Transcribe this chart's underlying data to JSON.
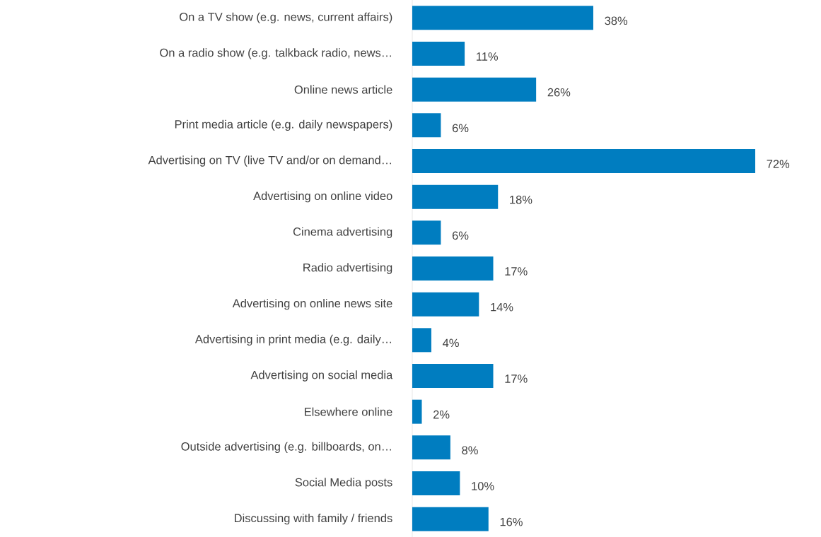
{
  "chart_data": {
    "type": "bar",
    "orientation": "horizontal",
    "categories": [
      "On a TV show (e.g. news, current affairs)",
      "On a radio show (e.g. talkback radio, news…",
      "Online news article",
      "Print media article (e.g. daily newspapers)",
      "Advertising on TV (live TV and/or on demand…",
      "Advertising on online video",
      "Cinema advertising",
      "Radio advertising",
      "Advertising on online news site",
      "Advertising in print media (e.g. daily…",
      "Advertising on social media",
      "Elsewhere online",
      "Outside advertising (e.g. billboards, on…",
      "Social Media posts",
      "Discussing with family / friends"
    ],
    "values": [
      38,
      11,
      26,
      6,
      72,
      18,
      6,
      17,
      14,
      4,
      17,
      2,
      8,
      10,
      16
    ],
    "value_labels": [
      "38%",
      "11%",
      "26%",
      "6%",
      "72%",
      "18%",
      "6%",
      "17%",
      "14%",
      "4%",
      "17%",
      "2%",
      "8%",
      "10%",
      "16%"
    ],
    "color": "#007dc0"
  }
}
